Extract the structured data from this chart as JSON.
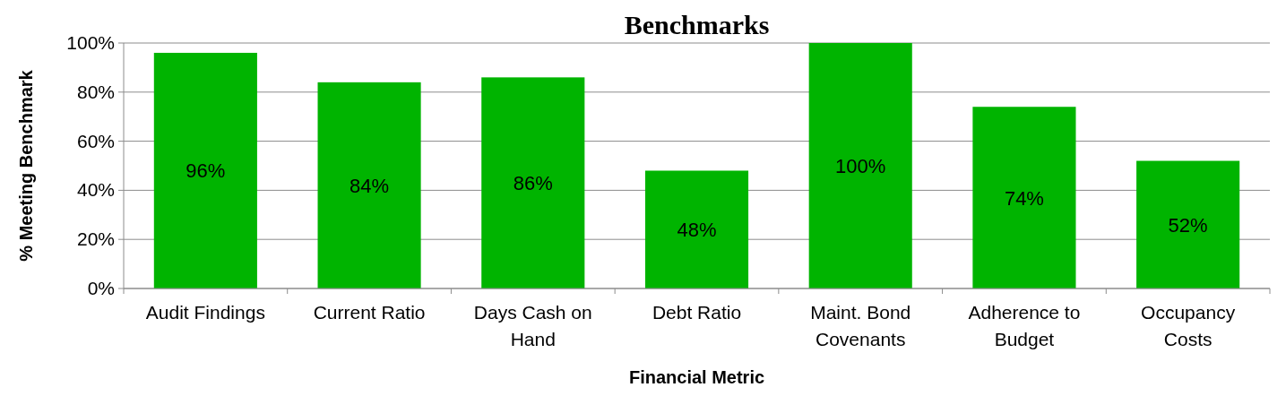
{
  "chart_data": {
    "type": "bar",
    "title": "Benchmarks",
    "xlabel": "Financial Metric",
    "ylabel": "% Meeting Benchmark",
    "categories": [
      "Audit Findings",
      "Current Ratio",
      "Days Cash on Hand",
      "Debt Ratio",
      "Maint. Bond Covenants",
      "Adherence to Budget",
      "Occupancy Costs"
    ],
    "values": [
      96,
      84,
      86,
      48,
      100,
      74,
      52
    ],
    "value_labels": [
      "96%",
      "84%",
      "86%",
      "48%",
      "100%",
      "74%",
      "52%"
    ],
    "color": "#00b400",
    "ylim": [
      0,
      100
    ],
    "yticks": [
      {
        "value": 0,
        "label": "0%"
      },
      {
        "value": 20,
        "label": "20%"
      },
      {
        "value": 40,
        "label": "40%"
      },
      {
        "value": 60,
        "label": "60%"
      },
      {
        "value": 80,
        "label": "80%"
      },
      {
        "value": 100,
        "label": "100%"
      }
    ],
    "grid": "y"
  }
}
